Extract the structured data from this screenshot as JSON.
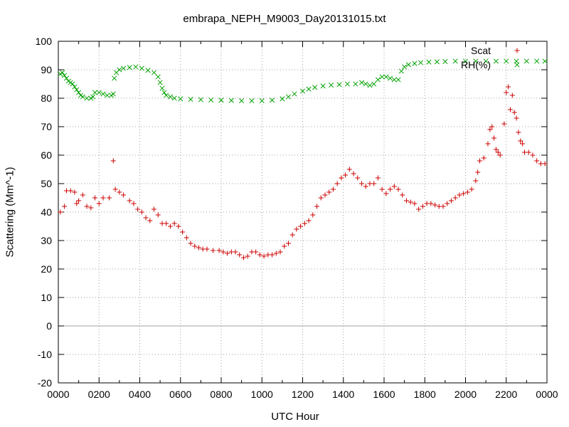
{
  "chart_data": {
    "type": "scatter",
    "title": "embrapa_NEPH_M9003_Day20131015.txt",
    "xlabel": "UTC Hour",
    "ylabel": "Scattering (Mm^-1)",
    "xlim": [
      0,
      24
    ],
    "ylim": [
      -20,
      100
    ],
    "xticks": [
      "0000",
      "0200",
      "0400",
      "0600",
      "0800",
      "1000",
      "1200",
      "1400",
      "1600",
      "1800",
      "2000",
      "2200",
      "0000"
    ],
    "yticks": [
      "-20",
      "-10",
      "0",
      "10",
      "20",
      "30",
      "40",
      "50",
      "60",
      "70",
      "80",
      "90",
      "100"
    ],
    "grid": true,
    "legend_position": "top-right",
    "series": [
      {
        "name": "Scat",
        "marker": "+",
        "color": "#cc0000",
        "points": [
          [
            0.1,
            40
          ],
          [
            0.3,
            42
          ],
          [
            0.4,
            47.5
          ],
          [
            0.6,
            47.5
          ],
          [
            0.8,
            47
          ],
          [
            0.9,
            43
          ],
          [
            1.0,
            44
          ],
          [
            1.2,
            46
          ],
          [
            1.4,
            42
          ],
          [
            1.6,
            41.5
          ],
          [
            1.8,
            45
          ],
          [
            2.0,
            43
          ],
          [
            2.2,
            45
          ],
          [
            2.5,
            45
          ],
          [
            2.7,
            58
          ],
          [
            2.8,
            48
          ],
          [
            3.0,
            47
          ],
          [
            3.2,
            46
          ],
          [
            3.5,
            44
          ],
          [
            3.7,
            43
          ],
          [
            3.9,
            41
          ],
          [
            4.1,
            40
          ],
          [
            4.3,
            38
          ],
          [
            4.5,
            37
          ],
          [
            4.7,
            41
          ],
          [
            4.9,
            39
          ],
          [
            5.1,
            36
          ],
          [
            5.3,
            36
          ],
          [
            5.5,
            35
          ],
          [
            5.7,
            36
          ],
          [
            5.9,
            35
          ],
          [
            6.1,
            33
          ],
          [
            6.3,
            31
          ],
          [
            6.5,
            29
          ],
          [
            6.7,
            28
          ],
          [
            6.9,
            27.5
          ],
          [
            7.1,
            27
          ],
          [
            7.3,
            27
          ],
          [
            7.6,
            26.5
          ],
          [
            7.9,
            26.5
          ],
          [
            8.1,
            26
          ],
          [
            8.3,
            25.5
          ],
          [
            8.5,
            26
          ],
          [
            8.7,
            26
          ],
          [
            8.9,
            25
          ],
          [
            9.1,
            24
          ],
          [
            9.3,
            24.5
          ],
          [
            9.5,
            26
          ],
          [
            9.7,
            26
          ],
          [
            9.9,
            25
          ],
          [
            10.1,
            24.5
          ],
          [
            10.3,
            25
          ],
          [
            10.5,
            25
          ],
          [
            10.7,
            25.5
          ],
          [
            10.9,
            26
          ],
          [
            11.1,
            28
          ],
          [
            11.3,
            29
          ],
          [
            11.5,
            32
          ],
          [
            11.7,
            34
          ],
          [
            11.9,
            35
          ],
          [
            12.1,
            36
          ],
          [
            12.3,
            37
          ],
          [
            12.5,
            39
          ],
          [
            12.7,
            42
          ],
          [
            12.9,
            45
          ],
          [
            13.1,
            46
          ],
          [
            13.3,
            47
          ],
          [
            13.5,
            48
          ],
          [
            13.7,
            50
          ],
          [
            13.9,
            52
          ],
          [
            14.1,
            53
          ],
          [
            14.3,
            55
          ],
          [
            14.5,
            53.5
          ],
          [
            14.7,
            52
          ],
          [
            14.9,
            50
          ],
          [
            15.1,
            49
          ],
          [
            15.3,
            50
          ],
          [
            15.5,
            50
          ],
          [
            15.7,
            52
          ],
          [
            15.9,
            48
          ],
          [
            16.1,
            46.5
          ],
          [
            16.3,
            48
          ],
          [
            16.5,
            49
          ],
          [
            16.7,
            48
          ],
          [
            16.9,
            46
          ],
          [
            17.1,
            44
          ],
          [
            17.3,
            43.5
          ],
          [
            17.5,
            43
          ],
          [
            17.7,
            41
          ],
          [
            17.9,
            42
          ],
          [
            18.1,
            43
          ],
          [
            18.3,
            43
          ],
          [
            18.5,
            42.5
          ],
          [
            18.7,
            42
          ],
          [
            18.9,
            42
          ],
          [
            19.1,
            43
          ],
          [
            19.3,
            44
          ],
          [
            19.5,
            45
          ],
          [
            19.7,
            46
          ],
          [
            19.9,
            46.5
          ],
          [
            20.1,
            47
          ],
          [
            20.3,
            48
          ],
          [
            20.5,
            51
          ],
          [
            20.6,
            54
          ],
          [
            20.7,
            58
          ],
          [
            20.9,
            59
          ],
          [
            21.1,
            64
          ],
          [
            21.2,
            69
          ],
          [
            21.3,
            70
          ],
          [
            21.4,
            66
          ],
          [
            21.5,
            62
          ],
          [
            21.6,
            61
          ],
          [
            21.7,
            60
          ],
          [
            21.9,
            71
          ],
          [
            22.0,
            82
          ],
          [
            22.1,
            84
          ],
          [
            22.2,
            76
          ],
          [
            22.3,
            81
          ],
          [
            22.4,
            75
          ],
          [
            22.5,
            73
          ],
          [
            22.6,
            68
          ],
          [
            22.7,
            65
          ],
          [
            22.8,
            64
          ],
          [
            22.9,
            61
          ],
          [
            23.1,
            61
          ],
          [
            23.3,
            60
          ],
          [
            23.5,
            58
          ],
          [
            23.7,
            57
          ],
          [
            23.9,
            57
          ]
        ]
      },
      {
        "name": "RH(%)",
        "marker": "x",
        "color": "#00a000",
        "points": [
          [
            0.1,
            88.5
          ],
          [
            0.2,
            89
          ],
          [
            0.3,
            88
          ],
          [
            0.4,
            87
          ],
          [
            0.5,
            86
          ],
          [
            0.6,
            85.5
          ],
          [
            0.7,
            85
          ],
          [
            0.8,
            84
          ],
          [
            0.9,
            83
          ],
          [
            1.0,
            82
          ],
          [
            1.1,
            81
          ],
          [
            1.2,
            80.5
          ],
          [
            1.4,
            80
          ],
          [
            1.6,
            80
          ],
          [
            1.7,
            80.5
          ],
          [
            1.8,
            82
          ],
          [
            2.0,
            82
          ],
          [
            2.2,
            81.5
          ],
          [
            2.4,
            81
          ],
          [
            2.6,
            81
          ],
          [
            2.7,
            81.5
          ],
          [
            2.75,
            87
          ],
          [
            2.85,
            89
          ],
          [
            3.0,
            90
          ],
          [
            3.2,
            90.5
          ],
          [
            3.5,
            90.8
          ],
          [
            3.8,
            91
          ],
          [
            4.1,
            90.5
          ],
          [
            4.4,
            89.8
          ],
          [
            4.7,
            89
          ],
          [
            4.9,
            87.5
          ],
          [
            5.0,
            85.5
          ],
          [
            5.1,
            83.5
          ],
          [
            5.2,
            82
          ],
          [
            5.3,
            81
          ],
          [
            5.5,
            80.5
          ],
          [
            5.7,
            80
          ],
          [
            6.0,
            79.8
          ],
          [
            6.5,
            79.6
          ],
          [
            7.0,
            79.5
          ],
          [
            7.5,
            79.4
          ],
          [
            8.0,
            79.3
          ],
          [
            8.5,
            79.2
          ],
          [
            9.0,
            79.1
          ],
          [
            9.5,
            79.1
          ],
          [
            10.0,
            79.1
          ],
          [
            10.5,
            79.3
          ],
          [
            11.0,
            79.8
          ],
          [
            11.3,
            80.5
          ],
          [
            11.6,
            81.5
          ],
          [
            12.0,
            82.5
          ],
          [
            12.3,
            83.2
          ],
          [
            12.6,
            83.8
          ],
          [
            13.0,
            84.3
          ],
          [
            13.4,
            84.6
          ],
          [
            13.8,
            84.8
          ],
          [
            14.2,
            85
          ],
          [
            14.6,
            85
          ],
          [
            14.9,
            85.5
          ],
          [
            15.1,
            85
          ],
          [
            15.3,
            84.5
          ],
          [
            15.5,
            85
          ],
          [
            15.7,
            86.5
          ],
          [
            15.9,
            87.5
          ],
          [
            16.1,
            87.5
          ],
          [
            16.3,
            87
          ],
          [
            16.5,
            86.5
          ],
          [
            16.7,
            86.5
          ],
          [
            16.85,
            89.5
          ],
          [
            17.0,
            91
          ],
          [
            17.2,
            91.8
          ],
          [
            17.5,
            92.2
          ],
          [
            17.8,
            92.5
          ],
          [
            18.2,
            92.7
          ],
          [
            18.6,
            92.8
          ],
          [
            19.0,
            92.9
          ],
          [
            19.5,
            93
          ],
          [
            20.0,
            93
          ],
          [
            20.5,
            93
          ],
          [
            21.0,
            93
          ],
          [
            21.5,
            93
          ],
          [
            22.0,
            93
          ],
          [
            22.5,
            93
          ],
          [
            23.0,
            93
          ],
          [
            23.5,
            93
          ],
          [
            23.9,
            93
          ]
        ]
      }
    ]
  }
}
